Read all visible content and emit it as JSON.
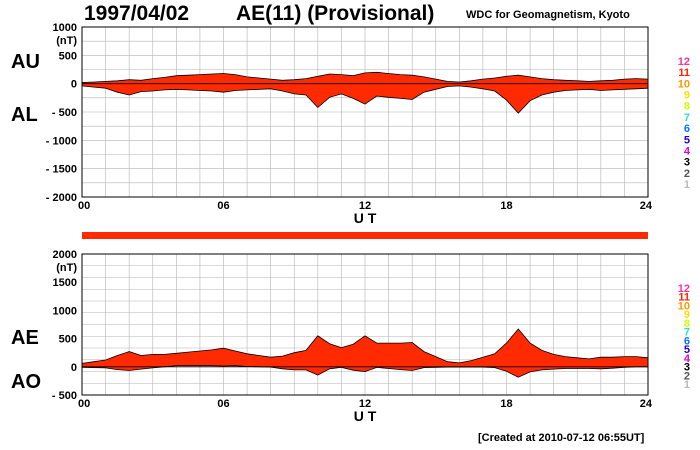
{
  "header": {
    "date": "1997/04/02",
    "index_title": "AE(11) (Provisional)",
    "source": "WDC for Geomagnetism, Kyoto"
  },
  "footer": {
    "created": "[Created at 2010-07-12 06:55UT]"
  },
  "colors": {
    "fill": "#ff2a00",
    "line": "#000000",
    "grid": "#b4b4b4"
  },
  "level_scale": [
    {
      "label": "12",
      "color": "#ff3399"
    },
    {
      "label": "11",
      "color": "#ff2200"
    },
    {
      "label": "10",
      "color": "#ff9900"
    },
    {
      "label": "9",
      "color": "#ffdd00"
    },
    {
      "label": "8",
      "color": "#ccff00"
    },
    {
      "label": "7",
      "color": "#33ddcc"
    },
    {
      "label": "6",
      "color": "#0077ff"
    },
    {
      "label": "5",
      "color": "#2200cc"
    },
    {
      "label": "4",
      "color": "#dd00dd"
    },
    {
      "label": "3",
      "color": "#000000"
    },
    {
      "label": "2",
      "color": "#555555"
    },
    {
      "label": "1",
      "color": "#bbbbbb"
    }
  ],
  "chart_data": [
    {
      "type": "area",
      "series_labels": [
        "AU",
        "AL"
      ],
      "unit": "(nT)",
      "xlabel": "U T",
      "x_ticks": [
        "00",
        "06",
        "12",
        "18",
        "24"
      ],
      "xlim": [
        0,
        24
      ],
      "ylim": [
        -2000,
        1000
      ],
      "y_ticks": [
        "1000",
        "500",
        "0",
        "- 500",
        "- 1000",
        "- 1500",
        "- 2000"
      ],
      "y_tick_values": [
        1000,
        500,
        0,
        -500,
        -1000,
        -1500,
        -2000
      ],
      "grid": true,
      "hours": [
        0,
        0.5,
        1,
        1.5,
        2,
        2.5,
        3,
        3.5,
        4,
        4.5,
        5,
        5.5,
        6,
        6.5,
        7,
        7.5,
        8,
        8.5,
        9,
        9.5,
        10,
        10.5,
        11,
        11.5,
        12,
        12.5,
        13,
        13.5,
        14,
        14.5,
        15,
        15.5,
        16,
        16.5,
        17,
        17.5,
        18,
        18.5,
        19,
        19.5,
        20,
        20.5,
        21,
        21.5,
        22,
        22.5,
        23,
        23.5,
        24
      ],
      "AU": [
        20,
        30,
        40,
        50,
        70,
        60,
        90,
        110,
        140,
        150,
        160,
        170,
        180,
        160,
        120,
        100,
        80,
        60,
        70,
        90,
        130,
        170,
        160,
        140,
        190,
        200,
        180,
        160,
        150,
        120,
        80,
        40,
        30,
        50,
        80,
        100,
        130,
        150,
        120,
        90,
        70,
        60,
        50,
        40,
        50,
        60,
        80,
        90,
        80
      ],
      "AL": [
        -40,
        -60,
        -80,
        -150,
        -200,
        -140,
        -130,
        -110,
        -100,
        -110,
        -120,
        -130,
        -150,
        -120,
        -110,
        -100,
        -90,
        -130,
        -180,
        -200,
        -420,
        -240,
        -180,
        -260,
        -360,
        -220,
        -240,
        -260,
        -280,
        -150,
        -100,
        -50,
        -40,
        -60,
        -90,
        -130,
        -290,
        -520,
        -300,
        -200,
        -150,
        -120,
        -110,
        -100,
        -120,
        -110,
        -100,
        -90,
        -80
      ]
    },
    {
      "type": "area",
      "series_labels": [
        "AE",
        "AO"
      ],
      "unit": "(nT)",
      "xlabel": "U T",
      "x_ticks": [
        "00",
        "06",
        "12",
        "18",
        "24"
      ],
      "xlim": [
        0,
        24
      ],
      "ylim": [
        -500,
        2000
      ],
      "y_ticks": [
        "2000",
        "1500",
        "1000",
        "500",
        "0",
        "- 500"
      ],
      "y_tick_values": [
        2000,
        1500,
        1000,
        500,
        0,
        -500
      ],
      "grid": true,
      "hours": [
        0,
        0.5,
        1,
        1.5,
        2,
        2.5,
        3,
        3.5,
        4,
        4.5,
        5,
        5.5,
        6,
        6.5,
        7,
        7.5,
        8,
        8.5,
        9,
        9.5,
        10,
        10.5,
        11,
        11.5,
        12,
        12.5,
        13,
        13.5,
        14,
        14.5,
        15,
        15.5,
        16,
        16.5,
        17,
        17.5,
        18,
        18.5,
        19,
        19.5,
        20,
        20.5,
        21,
        21.5,
        22,
        22.5,
        23,
        23.5,
        24
      ],
      "AE": [
        60,
        90,
        120,
        200,
        270,
        200,
        220,
        220,
        240,
        260,
        280,
        300,
        330,
        280,
        230,
        200,
        170,
        190,
        250,
        290,
        550,
        410,
        340,
        400,
        550,
        420,
        420,
        420,
        430,
        270,
        180,
        90,
        70,
        110,
        170,
        230,
        420,
        670,
        420,
        290,
        220,
        180,
        160,
        140,
        170,
        170,
        180,
        180,
        160
      ],
      "AO": [
        -10,
        -15,
        -20,
        -50,
        -65,
        -40,
        -20,
        0,
        20,
        20,
        20,
        20,
        15,
        20,
        5,
        0,
        -5,
        -35,
        -55,
        -55,
        -145,
        -35,
        -10,
        -60,
        -85,
        -10,
        -30,
        -50,
        -65,
        -15,
        -10,
        -5,
        -5,
        -5,
        -5,
        -15,
        -80,
        -185,
        -90,
        -55,
        -40,
        -30,
        -30,
        -30,
        -35,
        -25,
        -10,
        0,
        0
      ]
    }
  ]
}
